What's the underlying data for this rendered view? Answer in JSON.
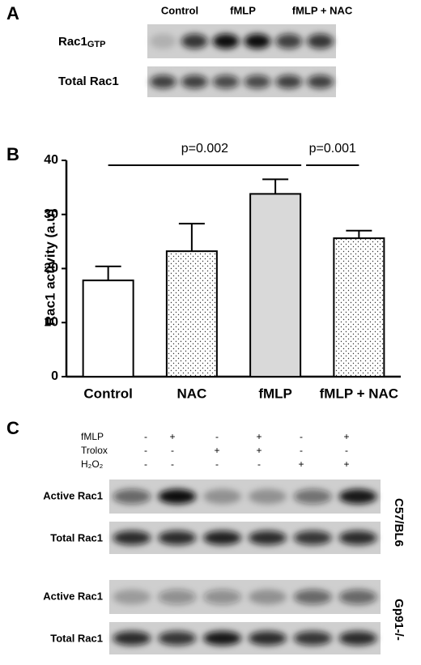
{
  "panel_a": {
    "label": "A",
    "columns": [
      "Control",
      "fMLP",
      "fMLP + NAC"
    ],
    "rows": [
      {
        "name": "Rac1",
        "subscript": "GTP"
      },
      {
        "name": "Total Rac1"
      }
    ]
  },
  "chart_data": {
    "type": "bar",
    "panel_label": "B",
    "ylabel": "Rac1 activity (a.u)",
    "categories": [
      "Control",
      "NAC",
      "fMLP",
      "fMLP + NAC"
    ],
    "values": [
      17.8,
      23.2,
      33.8,
      25.6
    ],
    "errors": [
      2.6,
      5.1,
      2.7,
      1.4
    ],
    "colors": [
      "#ffffff",
      "#ffffff",
      "#d9d9d9",
      "#ffffff"
    ],
    "patterns": [
      "none",
      "dots",
      "none",
      "dots"
    ],
    "ylim": [
      0,
      40
    ],
    "yticks": [
      0,
      10,
      20,
      30,
      40
    ],
    "comparisons": [
      {
        "label": "p=0.002",
        "between": [
          "Control",
          "fMLP"
        ]
      },
      {
        "label": "p=0.001",
        "between": [
          "fMLP",
          "fMLP + NAC"
        ]
      }
    ]
  },
  "panel_c": {
    "label": "C",
    "treatments": [
      {
        "name": "fMLP",
        "signs": [
          "-",
          "+",
          "-",
          "+",
          "-",
          "+"
        ]
      },
      {
        "name": "Trolox",
        "signs": [
          "-",
          "-",
          "+",
          "+",
          "-",
          "-"
        ]
      },
      {
        "name": "H₂O₂",
        "signs": [
          "-",
          "-",
          "-",
          "-",
          "+",
          "+"
        ]
      }
    ],
    "blots": [
      {
        "name": "C57/BL6",
        "rows": [
          "Active Rac1",
          "Total Rac1"
        ]
      },
      {
        "name": "Gp91-/-",
        "rows": [
          "Active Rac1",
          "Total Rac1"
        ]
      }
    ]
  }
}
